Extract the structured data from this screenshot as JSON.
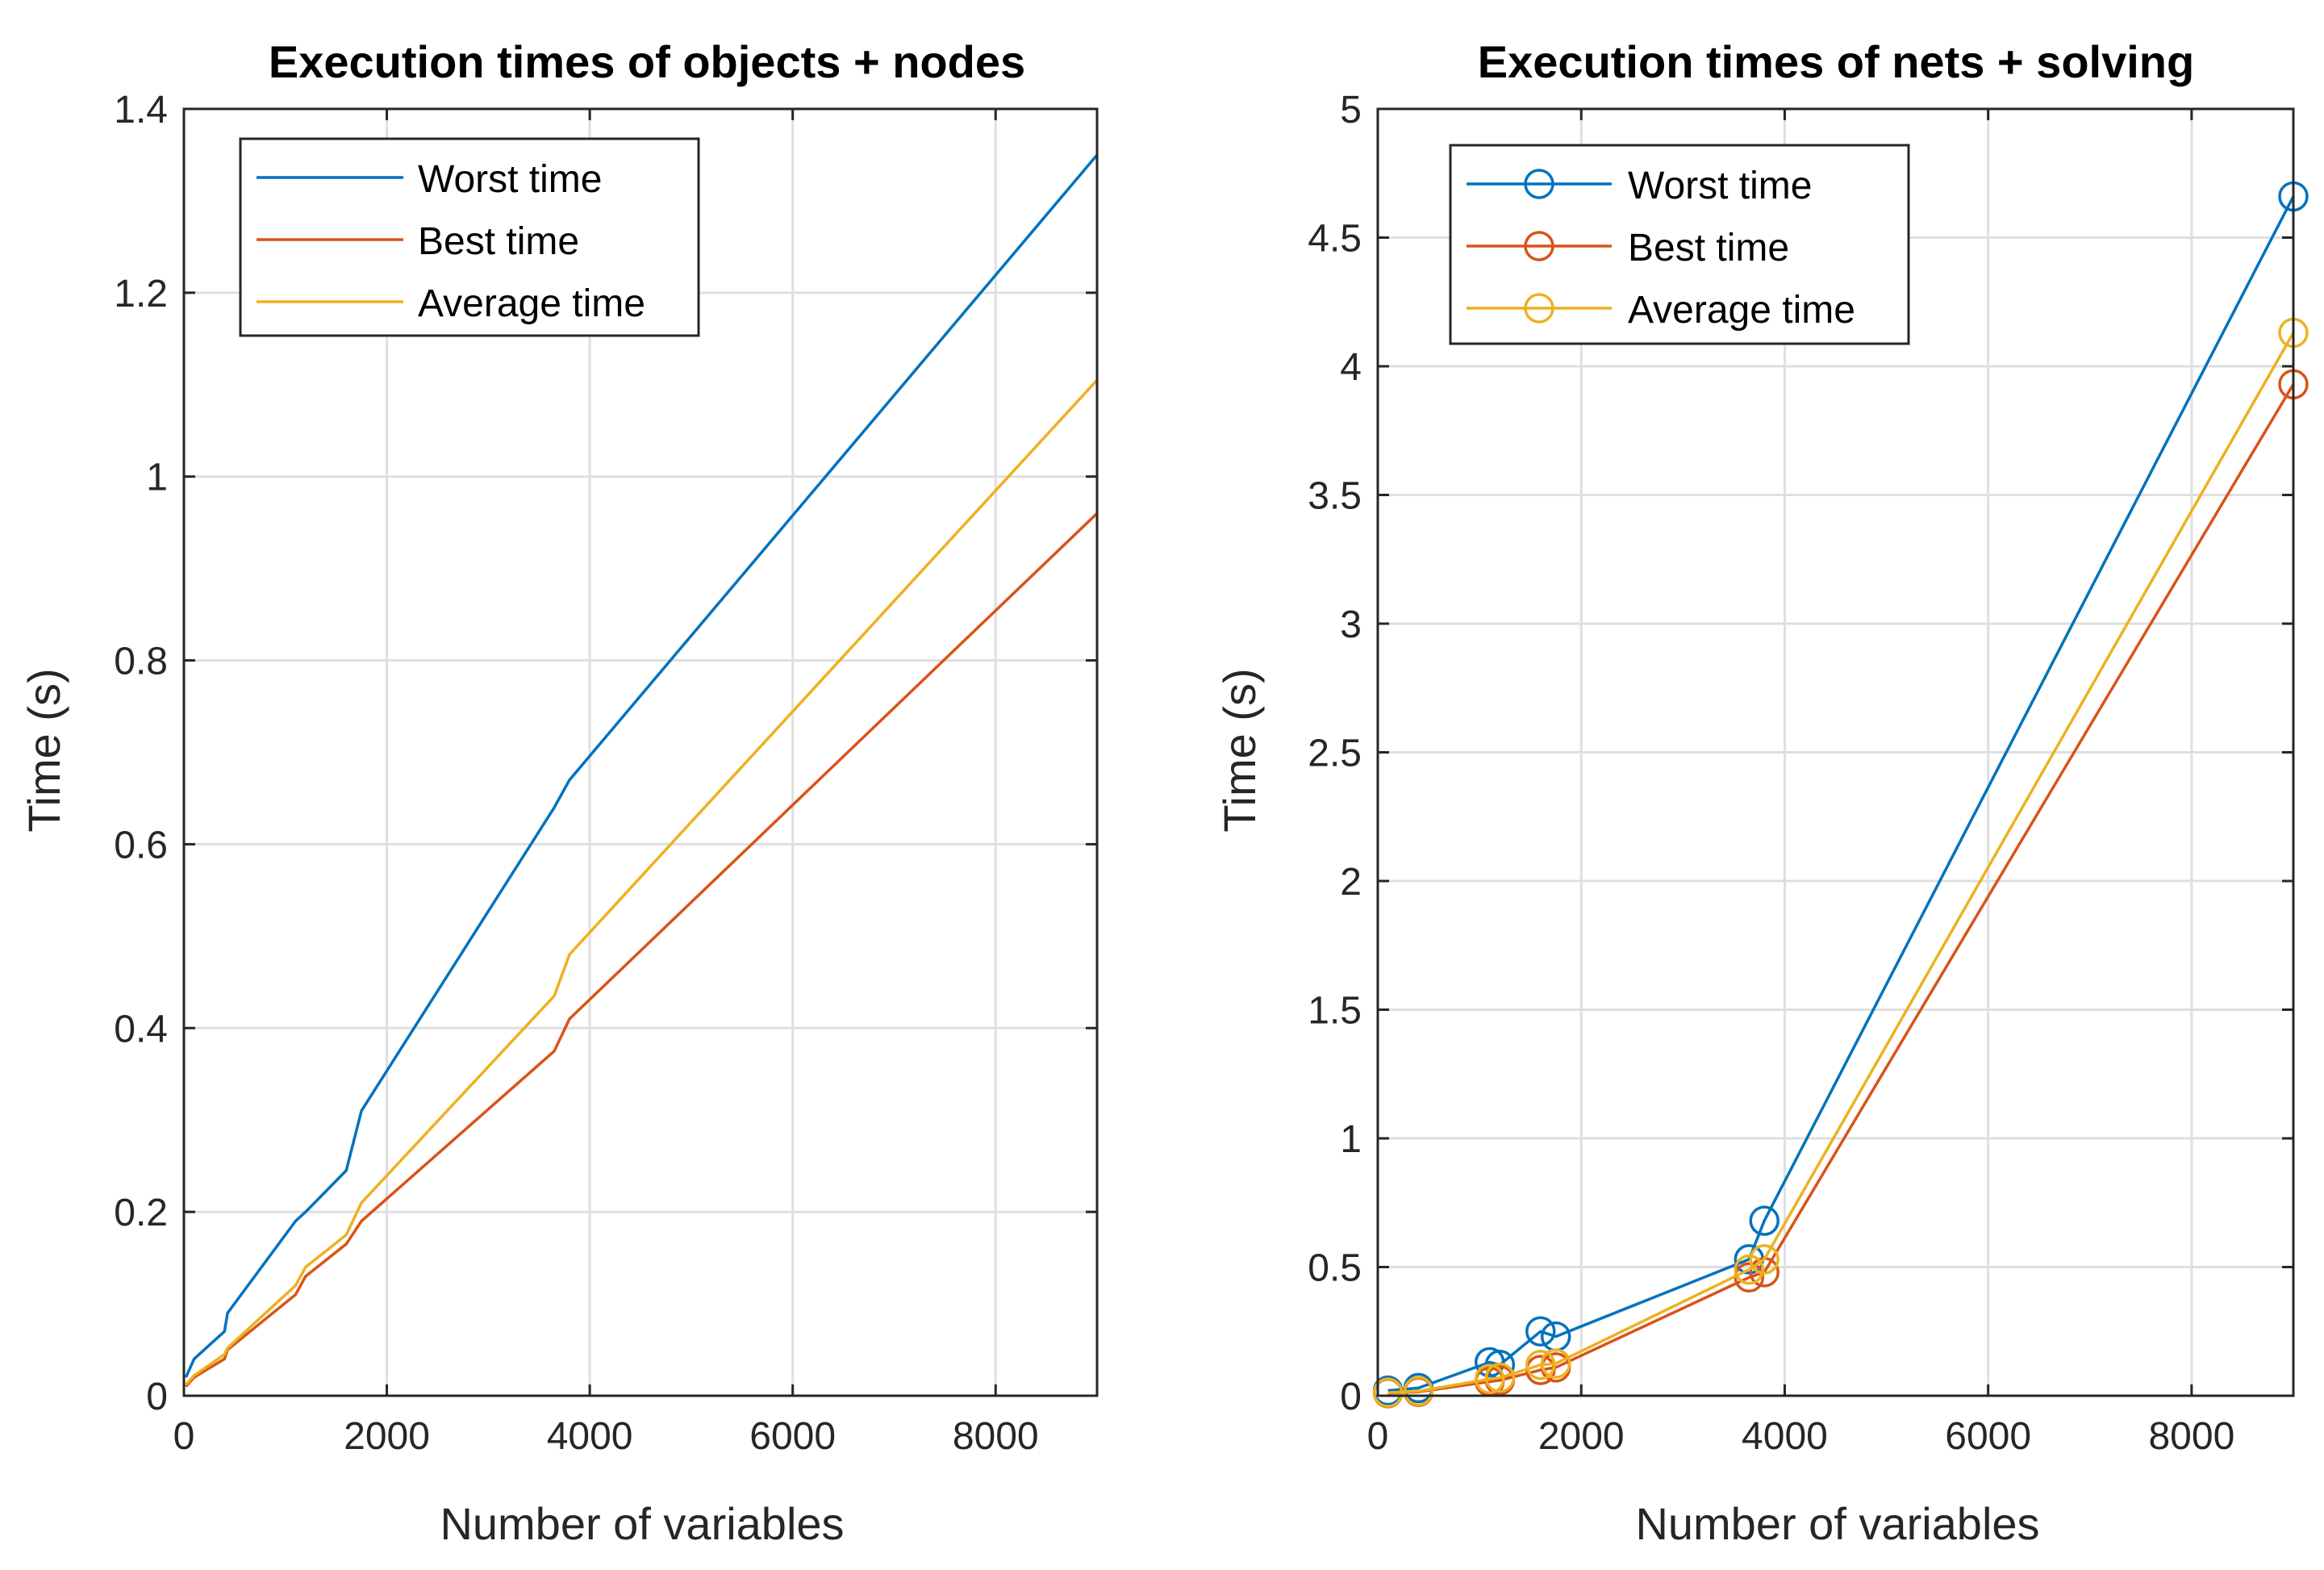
{
  "chart_data": [
    {
      "type": "line",
      "title": "Execution times of objects + nodes",
      "xlabel": "Number of variables",
      "ylabel": "Time (s)",
      "xlim": [
        0,
        9000
      ],
      "ylim": [
        0,
        1.4
      ],
      "xticks": [
        0,
        2000,
        4000,
        6000,
        8000
      ],
      "xtick_labels": [
        "0",
        "2000",
        "4000",
        "6000",
        "8000"
      ],
      "yticks": [
        0,
        0.2,
        0.4,
        0.6,
        0.8,
        1,
        1.2,
        1.4
      ],
      "ytick_labels": [
        "0",
        "0.2",
        "0.4",
        "0.6",
        "0.8",
        "1",
        "1.2",
        "1.4"
      ],
      "grid": true,
      "markers": false,
      "legend_position": "top-left",
      "x": [
        20,
        100,
        400,
        430,
        1100,
        1200,
        1600,
        1750,
        3650,
        3800,
        9000
      ],
      "series": [
        {
          "name": "Worst time",
          "color": "#0072BD",
          "values": [
            0.02,
            0.04,
            0.07,
            0.09,
            0.19,
            0.2,
            0.245,
            0.31,
            0.64,
            0.67,
            1.35
          ]
        },
        {
          "name": "Best time",
          "color": "#D95319",
          "values": [
            0.01,
            0.02,
            0.04,
            0.05,
            0.11,
            0.13,
            0.165,
            0.19,
            0.375,
            0.41,
            0.96
          ]
        },
        {
          "name": "Average time",
          "color": "#EDB120",
          "values": [
            0.012,
            0.022,
            0.045,
            0.052,
            0.12,
            0.14,
            0.175,
            0.21,
            0.435,
            0.48,
            1.105
          ]
        }
      ]
    },
    {
      "type": "line",
      "title": "Execution times of nets + solving",
      "xlabel": "Number of variables",
      "ylabel": "Time (s)",
      "xlim": [
        0,
        9000
      ],
      "ylim": [
        0,
        5
      ],
      "xticks": [
        0,
        2000,
        4000,
        6000,
        8000
      ],
      "xtick_labels": [
        "0",
        "2000",
        "4000",
        "6000",
        "8000"
      ],
      "yticks": [
        0,
        0.5,
        1,
        1.5,
        2,
        2.5,
        3,
        3.5,
        4,
        4.5,
        5
      ],
      "ytick_labels": [
        "0",
        "0.5",
        "1",
        "1.5",
        "2",
        "2.5",
        "3",
        "3.5",
        "4",
        "4.5",
        "5"
      ],
      "grid": true,
      "markers": true,
      "legend_position": "top-left",
      "x": [
        100,
        400,
        1100,
        1200,
        1600,
        1750,
        3650,
        3800,
        9000
      ],
      "series": [
        {
          "name": "Worst time",
          "color": "#0072BD",
          "values": [
            0.02,
            0.03,
            0.13,
            0.12,
            0.25,
            0.23,
            0.53,
            0.68,
            4.66
          ]
        },
        {
          "name": "Best time",
          "color": "#D95319",
          "values": [
            0.01,
            0.015,
            0.055,
            0.06,
            0.1,
            0.11,
            0.46,
            0.48,
            3.93
          ]
        },
        {
          "name": "Average time",
          "color": "#EDB120",
          "values": [
            0.012,
            0.018,
            0.065,
            0.07,
            0.12,
            0.125,
            0.49,
            0.53,
            4.13
          ]
        }
      ]
    }
  ]
}
